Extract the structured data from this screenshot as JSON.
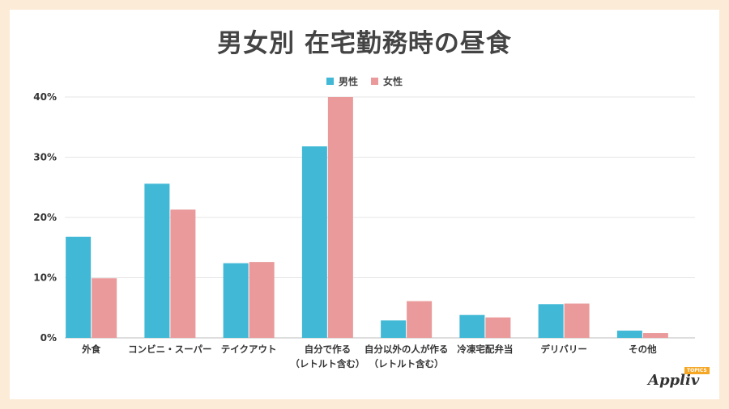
{
  "chart_data": {
    "type": "bar",
    "title": "男女別 在宅勤務時の昼食",
    "categories": [
      [
        "外食"
      ],
      [
        "コンビニ・スーパー"
      ],
      [
        "テイクアウト"
      ],
      [
        "自分で作る",
        "（レトルト含む）"
      ],
      [
        "自分以外の人が作る",
        "（レトルト含む）"
      ],
      [
        "冷凍宅配弁当"
      ],
      [
        "デリバリー"
      ],
      [
        "その他"
      ]
    ],
    "series": [
      {
        "name": "男性",
        "color": "#40b8d6",
        "values": [
          16.8,
          25.6,
          12.4,
          31.8,
          2.9,
          3.8,
          5.6,
          1.2
        ]
      },
      {
        "name": "女性",
        "color": "#ea9a9a",
        "values": [
          9.9,
          21.3,
          12.6,
          40.0,
          6.1,
          3.4,
          5.7,
          0.8
        ]
      }
    ],
    "ylim": [
      0,
      40
    ],
    "yticks": [
      "0%",
      "10%",
      "20%",
      "30%",
      "40%"
    ],
    "ytick_values": [
      0,
      10,
      20,
      30,
      40
    ],
    "grid": true,
    "legend_position": "top-center"
  },
  "logo": {
    "text": "Appliv",
    "badge": "TOPICS"
  }
}
